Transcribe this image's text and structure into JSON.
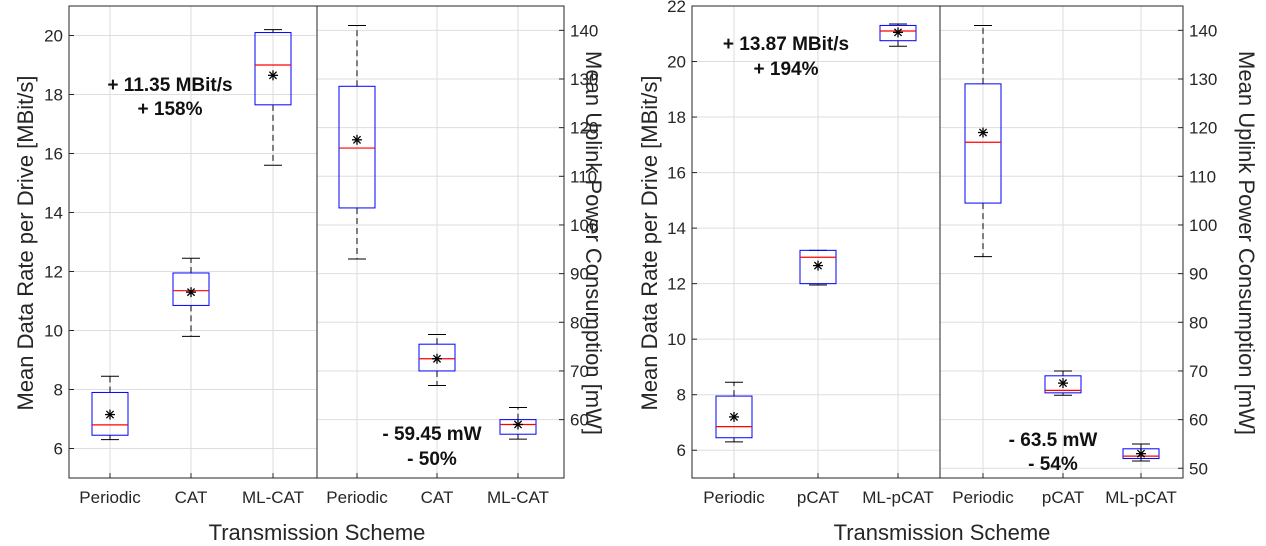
{
  "colors": {
    "box": "#0000ff",
    "median": "#ff0000",
    "whisker": "#000000",
    "mean_marker": "#000000",
    "grid": "#dedede",
    "axis": "#262626"
  },
  "chart_data": [
    {
      "type": "box",
      "ylabel": "Mean Data Rate per Drive [MBit/s]",
      "xlabel": "Transmission Scheme",
      "ylim": [
        5,
        21
      ],
      "yticks": [
        6,
        8,
        10,
        12,
        14,
        16,
        18,
        20
      ],
      "categories": [
        "Periodic",
        "CAT",
        "ML-CAT"
      ],
      "grid": true,
      "boxes": [
        {
          "min": 6.3,
          "q1": 6.45,
          "median": 6.8,
          "q3": 7.9,
          "max": 8.45,
          "mean": 7.15
        },
        {
          "min": 9.8,
          "q1": 10.85,
          "median": 11.35,
          "q3": 11.95,
          "max": 12.45,
          "mean": 11.3
        },
        {
          "min": 15.6,
          "q1": 17.65,
          "median": 19.0,
          "q3": 20.1,
          "max": 20.2,
          "mean": 18.65
        }
      ],
      "annotation": [
        "+ 11.35 MBit/s",
        "+ 158%"
      ]
    },
    {
      "type": "box",
      "ylabel": "Mean Uplink Power Consumption [mW]",
      "ylim": [
        48,
        145
      ],
      "yticks": [
        60,
        70,
        80,
        90,
        100,
        110,
        120,
        130,
        140
      ],
      "categories": [
        "Periodic",
        "CAT",
        "ML-CAT"
      ],
      "grid": true,
      "boxes": [
        {
          "min": 93.0,
          "q1": 103.5,
          "median": 115.8,
          "q3": 128.5,
          "max": 141.0,
          "mean": 117.5
        },
        {
          "min": 67.0,
          "q1": 70.0,
          "median": 72.5,
          "q3": 75.5,
          "max": 77.5,
          "mean": 72.5
        },
        {
          "min": 56.0,
          "q1": 57.0,
          "median": 59.0,
          "q3": 60.0,
          "max": 62.5,
          "mean": 59.0
        }
      ],
      "annotation": [
        "- 59.45 mW",
        "- 50%"
      ]
    },
    {
      "type": "box",
      "ylabel": "Mean Data Rate per Drive [MBit/s]",
      "xlabel": "Transmission Scheme",
      "ylim": [
        5,
        22
      ],
      "yticks": [
        6,
        8,
        10,
        12,
        14,
        16,
        18,
        20,
        22
      ],
      "categories": [
        "Periodic",
        "pCAT",
        "ML-pCAT"
      ],
      "grid": true,
      "boxes": [
        {
          "min": 6.3,
          "q1": 6.45,
          "median": 6.85,
          "q3": 7.95,
          "max": 8.45,
          "mean": 7.2
        },
        {
          "min": 11.95,
          "q1": 12.0,
          "median": 12.95,
          "q3": 13.2,
          "max": 13.2,
          "mean": 12.65
        },
        {
          "min": 20.55,
          "q1": 20.75,
          "median": 21.1,
          "q3": 21.3,
          "max": 21.35,
          "mean": 21.05
        }
      ],
      "annotation": [
        "+ 13.87 MBit/s",
        "+ 194%"
      ]
    },
    {
      "type": "box",
      "ylabel": "Mean Uplink Power Consumption [mW]",
      "ylim": [
        48,
        145
      ],
      "yticks": [
        50,
        60,
        70,
        80,
        90,
        100,
        110,
        120,
        130,
        140
      ],
      "categories": [
        "Periodic",
        "pCAT",
        "ML-pCAT"
      ],
      "grid": true,
      "boxes": [
        {
          "min": 93.5,
          "q1": 104.5,
          "median": 117.0,
          "q3": 129.0,
          "max": 141.0,
          "mean": 119.0
        },
        {
          "min": 65.0,
          "q1": 65.5,
          "median": 66.0,
          "q3": 69.0,
          "max": 70.0,
          "mean": 67.5
        },
        {
          "min": 51.5,
          "q1": 52.0,
          "median": 52.5,
          "q3": 54.0,
          "max": 55.0,
          "mean": 53.0
        }
      ],
      "annotation": [
        "- 63.5 mW",
        "- 54%"
      ]
    }
  ]
}
